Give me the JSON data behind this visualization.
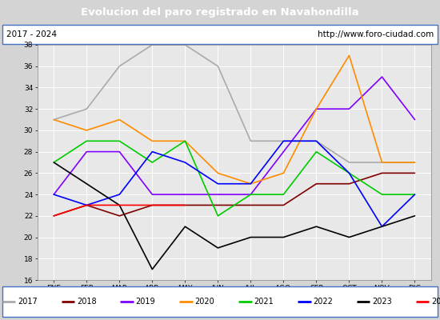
{
  "title": "Evolucion del paro registrado en Navahondilla",
  "title_color": "white",
  "title_bg": "#4472c4",
  "subtitle_left": "2017 - 2024",
  "subtitle_right": "http://www.foro-ciudad.com",
  "months": [
    "ENE",
    "FEB",
    "MAR",
    "ABR",
    "MAY",
    "JUN",
    "JUL",
    "AGO",
    "SEP",
    "OCT",
    "NOV",
    "DIC"
  ],
  "ylim": [
    16,
    38
  ],
  "yticks": [
    16,
    18,
    20,
    22,
    24,
    26,
    28,
    30,
    32,
    34,
    36,
    38
  ],
  "series": {
    "2017": {
      "color": "#aaaaaa",
      "values": [
        31,
        32,
        36,
        38,
        38,
        36,
        29,
        29,
        29,
        27,
        27,
        27
      ]
    },
    "2018": {
      "color": "#800000",
      "values": [
        22,
        23,
        22,
        23,
        23,
        23,
        23,
        23,
        25,
        25,
        26,
        26
      ]
    },
    "2019": {
      "color": "#8000ff",
      "values": [
        24,
        28,
        28,
        24,
        24,
        24,
        24,
        28,
        32,
        32,
        35,
        31
      ]
    },
    "2020": {
      "color": "#ff8c00",
      "values": [
        31,
        30,
        31,
        29,
        29,
        26,
        25,
        26,
        32,
        37,
        27,
        27
      ]
    },
    "2021": {
      "color": "#00cc00",
      "values": [
        27,
        29,
        29,
        27,
        29,
        22,
        24,
        24,
        28,
        26,
        24,
        24
      ]
    },
    "2022": {
      "color": "#0000ff",
      "values": [
        24,
        23,
        24,
        28,
        27,
        25,
        25,
        29,
        29,
        26,
        21,
        24
      ]
    },
    "2023": {
      "color": "#000000",
      "values": [
        27,
        25,
        23,
        17,
        21,
        19,
        20,
        20,
        21,
        20,
        21,
        22
      ]
    },
    "2024": {
      "color": "#ff0000",
      "values": [
        22,
        23,
        23,
        23,
        23,
        null,
        null,
        null,
        null,
        null,
        null,
        null
      ]
    }
  },
  "bg_color": "#d4d4d4",
  "plot_bg": "#e8e8e8",
  "grid_color": "white",
  "border_color": "#4472c4",
  "fig_width": 5.5,
  "fig_height": 4.0,
  "fig_dpi": 100
}
